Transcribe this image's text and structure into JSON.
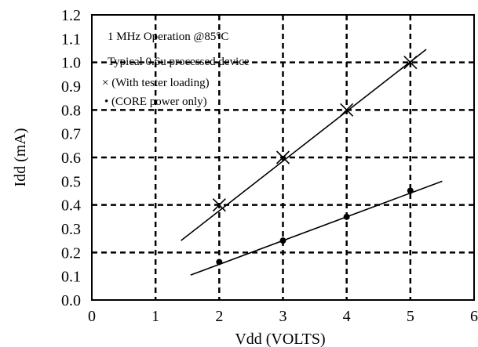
{
  "chart_data": {
    "type": "scatter",
    "xlabel": "Vdd (VOLTS)",
    "ylabel": "Idd (mA)",
    "xlim": [
      0,
      6
    ],
    "ylim": [
      0,
      1.2
    ],
    "x_ticks": [
      "0",
      "1",
      "2",
      "3",
      "4",
      "5",
      "6"
    ],
    "y_ticks": [
      "0.0",
      "0.1",
      "0.2",
      "0.3",
      "0.4",
      "0.5",
      "0.6",
      "0.7",
      "0.8",
      "0.9",
      "1.0",
      "1.1",
      "1.2"
    ],
    "grid_x": [
      1,
      2,
      3,
      4,
      5
    ],
    "grid_y": [
      0.2,
      0.4,
      0.6,
      0.8,
      1.0
    ],
    "annotations": [
      "1 MHz Operation @85°C",
      "Typical 0.6u processed device",
      "× (With tester loading)",
      "• (CORE power only)"
    ],
    "series": [
      {
        "marker": "x",
        "points": [
          [
            2,
            0.4
          ],
          [
            3,
            0.6
          ],
          [
            4,
            0.8
          ],
          [
            5,
            1.0
          ]
        ],
        "fit_line": [
          [
            1.4,
            0.25
          ],
          [
            5.25,
            1.055
          ]
        ]
      },
      {
        "marker": "dot",
        "points": [
          [
            2,
            0.16
          ],
          [
            3,
            0.25
          ],
          [
            4,
            0.35
          ],
          [
            5,
            0.46
          ]
        ],
        "fit_line": [
          [
            1.55,
            0.105
          ],
          [
            5.5,
            0.5
          ]
        ]
      }
    ]
  }
}
